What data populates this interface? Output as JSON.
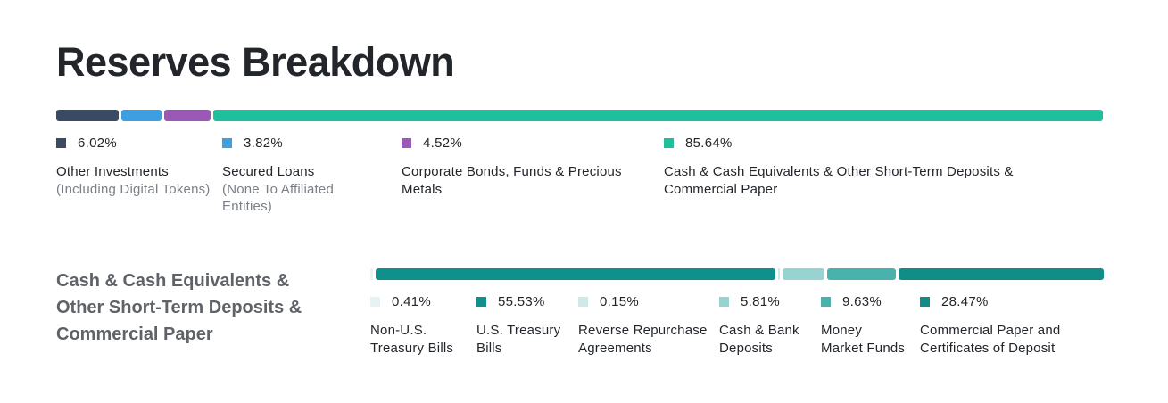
{
  "title": "Reserves Breakdown",
  "top_legend": [
    {
      "pct": "6.02%",
      "label": "Other Investments",
      "sub": "(Including Digital Tokens)",
      "color": "#3a4a63"
    },
    {
      "pct": "3.82%",
      "label": "Secured Loans",
      "sub": "(None To Affiliated Entities)",
      "color": "#3d9ee0"
    },
    {
      "pct": "4.52%",
      "label": "Corporate Bonds, Funds & Precious Metals",
      "sub": "",
      "color": "#9b59b6"
    },
    {
      "pct": "85.64%",
      "label": "Cash & Cash Equivalents & Other Short-Term Deposits & Commercial Paper",
      "sub": "",
      "color": "#1fbf9c"
    }
  ],
  "section_heading": "Cash & Cash Equivalents & Other Short-Term Deposits & Commercial Paper",
  "bottom_legend": [
    {
      "pct": "0.41%",
      "label": "Non-U.S. Treasury Bills",
      "color": "#e6f3f3"
    },
    {
      "pct": "55.53%",
      "label": "U.S. Treasury Bills",
      "color": "#0e918d"
    },
    {
      "pct": "0.15%",
      "label": "Reverse Repurchase Agreements",
      "color": "#cfe9e9"
    },
    {
      "pct": "5.81%",
      "label": "Cash & Bank Deposits",
      "color": "#96d3d1"
    },
    {
      "pct": "9.63%",
      "label": "Money Market Funds",
      "color": "#49b2ad"
    },
    {
      "pct": "28.47%",
      "label": "Commercial Paper and Certificates of Deposit",
      "color": "#0f8d86"
    }
  ],
  "chart_data": [
    {
      "type": "bar",
      "categories": [
        "Other Investments",
        "Secured Loans",
        "Corporate Bonds, Funds & Precious Metals",
        "Cash & Cash Equivalents & Other Short-Term Deposits & Commercial Paper"
      ],
      "values": [
        6.02,
        3.82,
        4.52,
        85.64
      ],
      "stacked": true,
      "orientation": "horizontal"
    },
    {
      "type": "bar",
      "categories": [
        "Non-U.S. Treasury Bills",
        "U.S. Treasury Bills",
        "Reverse Repurchase Agreements",
        "Cash & Bank Deposits",
        "Money Market Funds",
        "Commercial Paper and Certificates of Deposit"
      ],
      "values": [
        0.41,
        55.53,
        0.15,
        5.81,
        9.63,
        28.47
      ],
      "stacked": true,
      "orientation": "horizontal"
    }
  ]
}
